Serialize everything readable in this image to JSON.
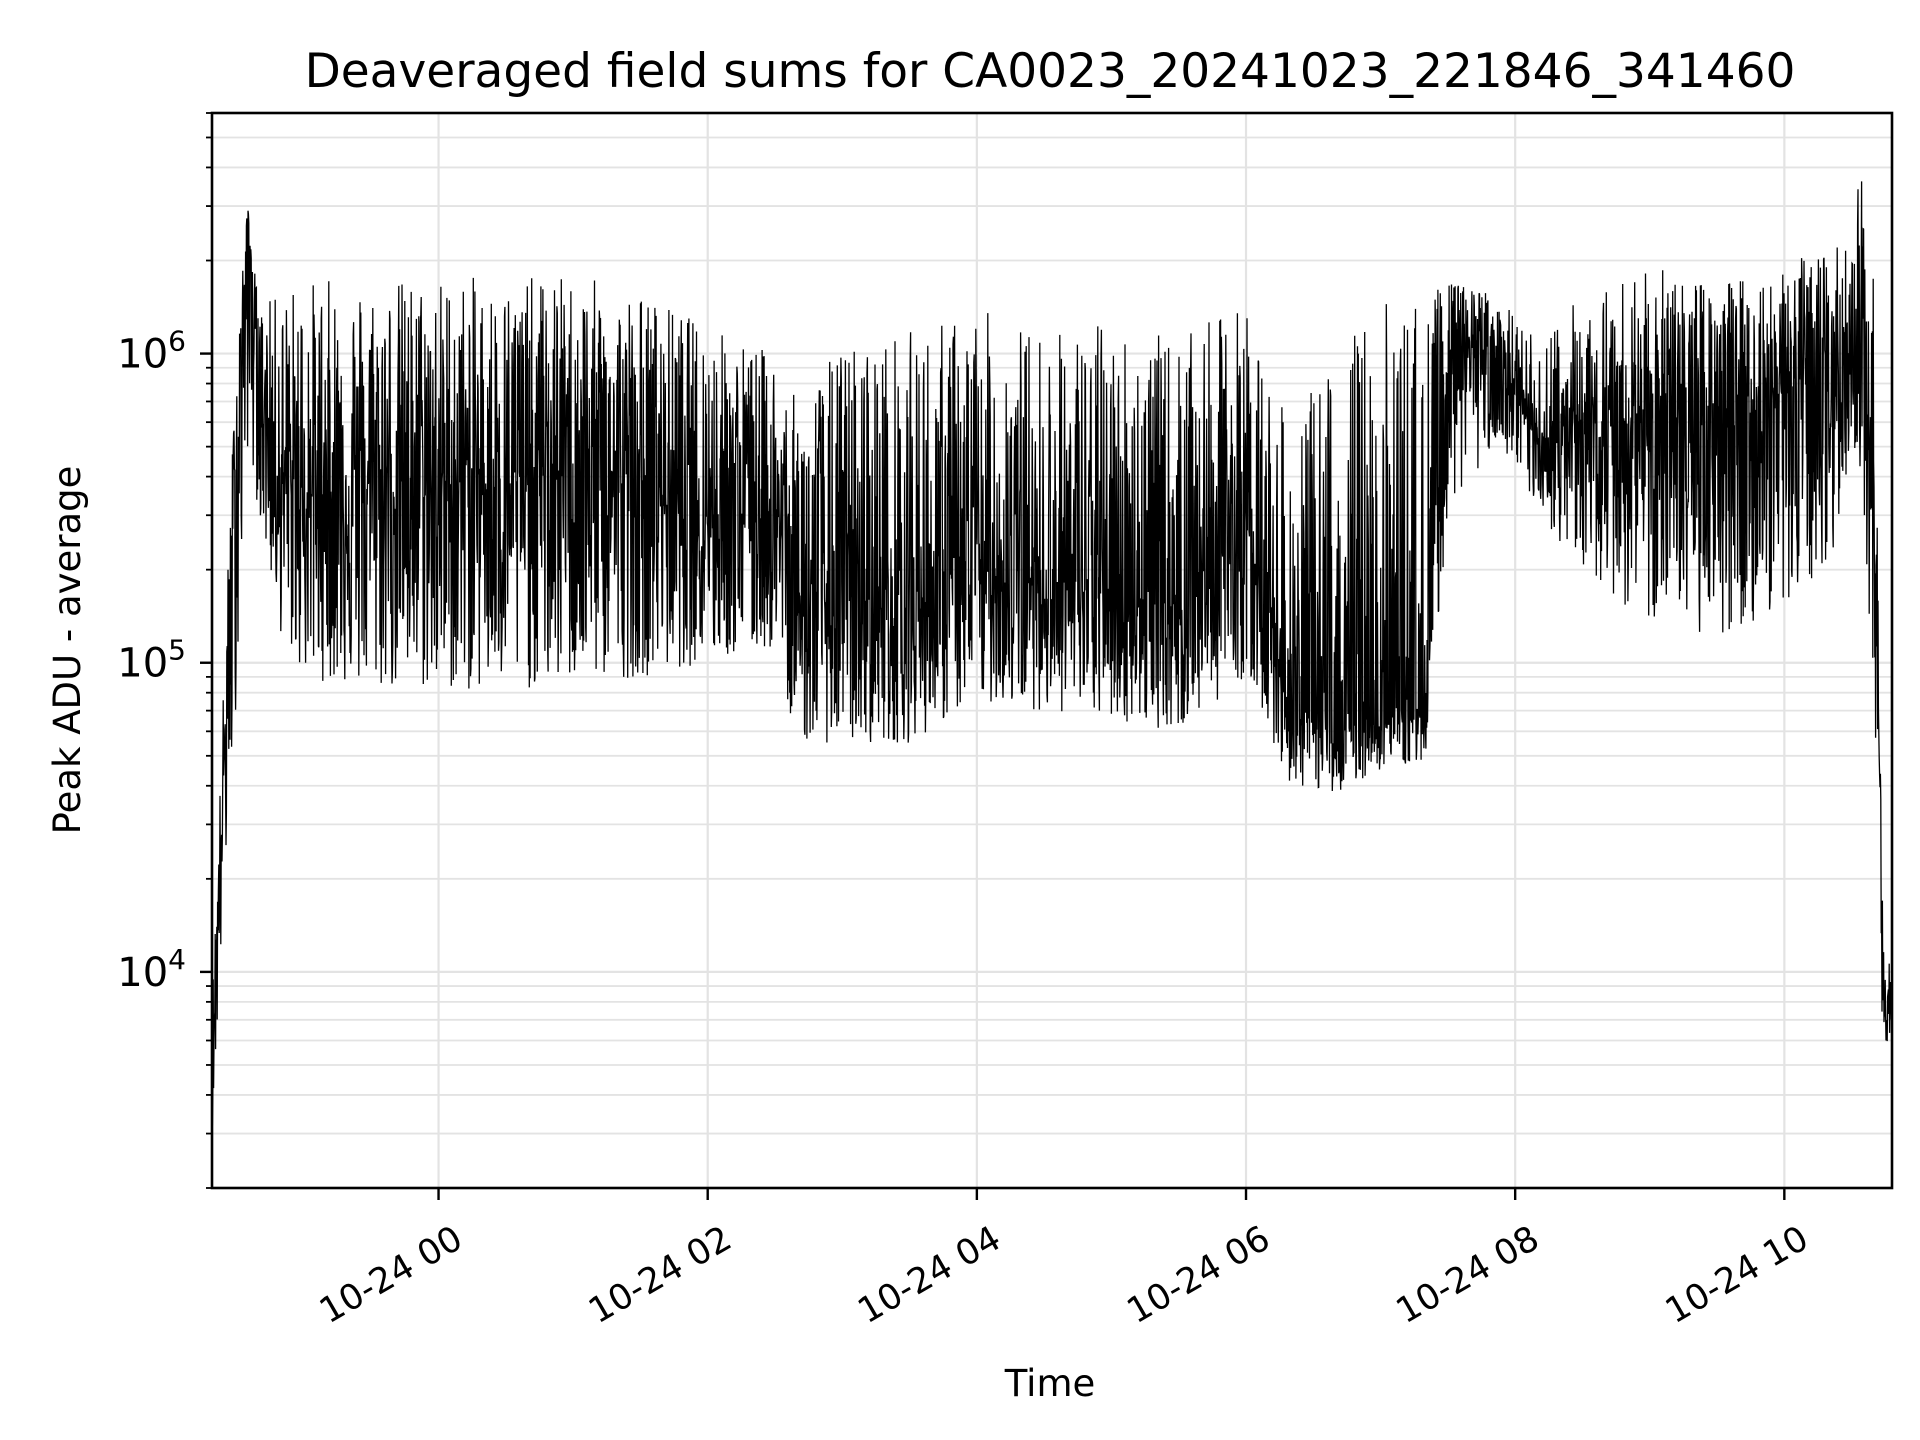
{
  "chart_data": {
    "type": "line",
    "title": "Deaveraged field sums for CA0023_20241023_221846_341460",
    "xlabel": "Time",
    "ylabel": "Peak ADU - average",
    "xlim": [
      "2024-10-23 22:19",
      "2024-10-24 10:48"
    ],
    "ylim": [
      2000,
      6000000
    ],
    "yscale": "log",
    "grid": true,
    "line_color": "#000000",
    "grid_color": "#e3e3e3",
    "x_ticks": [
      "2024-10-24 00:00",
      "2024-10-24 02:00",
      "2024-10-24 04:00",
      "2024-10-24 06:00",
      "2024-10-24 08:00",
      "2024-10-24 10:00"
    ],
    "x_tick_labels": [
      "10-24 00",
      "10-24 02",
      "10-24 04",
      "10-24 06",
      "10-24 08",
      "10-24 10"
    ],
    "y_ticks": [
      10000,
      100000,
      1000000
    ],
    "y_tick_labels": [
      {
        "base": "10",
        "exp": "4"
      },
      {
        "base": "10",
        "exp": "5"
      },
      {
        "base": "10",
        "exp": "6"
      }
    ],
    "envelope": {
      "time": [
        "2024-10-23 22:19",
        "2024-10-23 22:24",
        "2024-10-23 22:30",
        "2024-10-23 22:35",
        "2024-10-23 22:40",
        "2024-10-23 22:50",
        "2024-10-23 23:00",
        "2024-10-23 23:30",
        "2024-10-24 00:00",
        "2024-10-24 00:30",
        "2024-10-24 01:00",
        "2024-10-24 01:30",
        "2024-10-24 02:00",
        "2024-10-24 02:30",
        "2024-10-24 02:40",
        "2024-10-24 03:00",
        "2024-10-24 03:30",
        "2024-10-24 04:00",
        "2024-10-24 04:30",
        "2024-10-24 05:00",
        "2024-10-24 05:30",
        "2024-10-24 06:00",
        "2024-10-24 06:20",
        "2024-10-24 06:40",
        "2024-10-24 07:00",
        "2024-10-24 07:20",
        "2024-10-24 07:30",
        "2024-10-24 07:50",
        "2024-10-24 08:10",
        "2024-10-24 08:30",
        "2024-10-24 09:00",
        "2024-10-24 09:30",
        "2024-10-24 10:00",
        "2024-10-24 10:20",
        "2024-10-24 10:30",
        "2024-10-24 10:35",
        "2024-10-24 10:40",
        "2024-10-24 10:44",
        "2024-10-24 10:48"
      ],
      "low": [
        3000,
        15000,
        80000,
        500000,
        300000,
        120000,
        90000,
        80000,
        80000,
        80000,
        85000,
        90000,
        100000,
        110000,
        55000,
        55000,
        55000,
        75000,
        70000,
        65000,
        60000,
        90000,
        40000,
        38000,
        45000,
        48000,
        300000,
        500000,
        300000,
        200000,
        130000,
        120000,
        150000,
        200000,
        500000,
        400000,
        50000,
        5500,
        5500
      ],
      "mid": [
        5000,
        40000,
        500000,
        2800000,
        800000,
        400000,
        350000,
        380000,
        380000,
        380000,
        420000,
        380000,
        330000,
        320000,
        150000,
        160000,
        150000,
        200000,
        180000,
        170000,
        150000,
        300000,
        70000,
        60000,
        70000,
        72000,
        1000000,
        1050000,
        500000,
        550000,
        600000,
        650000,
        750000,
        750000,
        950000,
        1200000,
        300000,
        9000,
        8000
      ],
      "high": [
        8000,
        80000,
        1200000,
        3000000,
        1400000,
        1600000,
        1750000,
        1750000,
        1800000,
        1750000,
        1800000,
        1600000,
        1250000,
        1000000,
        700000,
        1100000,
        1200000,
        1400000,
        1200000,
        1300000,
        1100000,
        1500000,
        550000,
        1100000,
        1500000,
        1600000,
        1700000,
        1600000,
        1100000,
        1600000,
        1900000,
        1700000,
        2000000,
        2100000,
        2600000,
        4300000,
        1800000,
        12000,
        11000
      ]
    },
    "n_samples": 4200
  }
}
